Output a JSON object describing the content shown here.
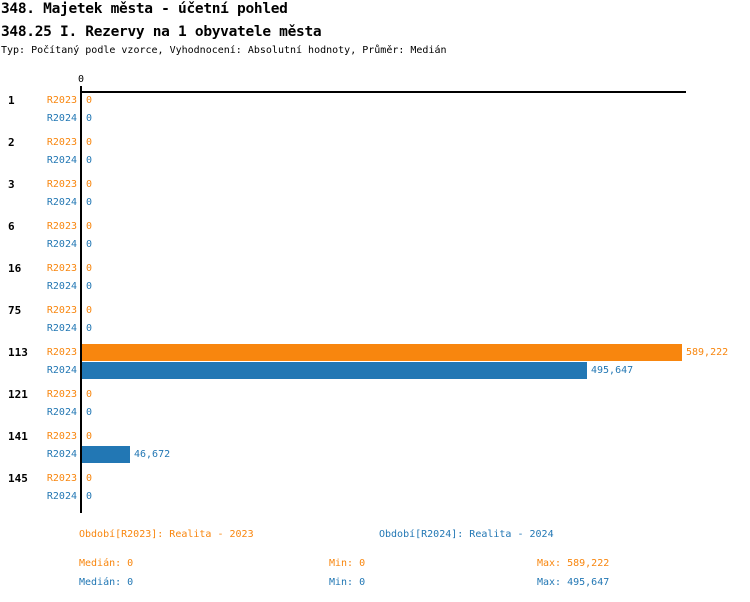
{
  "header": {
    "title_line1": "348. Majetek města - účetní pohled",
    "title_line2": "348.25 I. Rezervy na 1 obyvatele města",
    "subtitle": "Typ: Počítaný podle vzorce, Vyhodnocení: Absolutní hodnoty, Průměr: Medián"
  },
  "colors": {
    "r2023": "#f8860e",
    "r2024": "#2277b4",
    "axis": "#000000"
  },
  "chart_data": {
    "type": "bar",
    "orientation": "horizontal",
    "title": "348.25 I. Rezervy na 1 obyvatele města",
    "categories": [
      "1",
      "2",
      "3",
      "6",
      "16",
      "75",
      "113",
      "121",
      "141",
      "145"
    ],
    "series": [
      {
        "name": "R2023",
        "color": "#f8860e",
        "values": [
          0,
          0,
          0,
          0,
          0,
          0,
          589222,
          0,
          0,
          0
        ],
        "labels": [
          "0",
          "0",
          "0",
          "0",
          "0",
          "0",
          "589,222",
          "0",
          "0",
          "0"
        ]
      },
      {
        "name": "R2024",
        "color": "#2277b4",
        "values": [
          0,
          0,
          0,
          0,
          0,
          0,
          495647,
          0,
          46672,
          0
        ],
        "labels": [
          "0",
          "0",
          "0",
          "0",
          "0",
          "0",
          "495,647",
          "0",
          "46,672",
          "0"
        ]
      }
    ],
    "xlim": [
      0,
      589222
    ],
    "x_tick_labels": [
      "0"
    ],
    "grid": false,
    "legend_position": "bottom"
  },
  "axis": {
    "zero_tick_label": "0"
  },
  "legend": {
    "r2023_label": "Období[R2023]: Realita - 2023",
    "r2024_label": "Období[R2024]: Realita - 2024"
  },
  "stats": {
    "r2023": {
      "median": "Medián: 0",
      "min": "Min: 0",
      "max": "Max: 589,222"
    },
    "r2024": {
      "median": "Medián: 0",
      "min": "Min: 0",
      "max": "Max: 495,647"
    }
  }
}
